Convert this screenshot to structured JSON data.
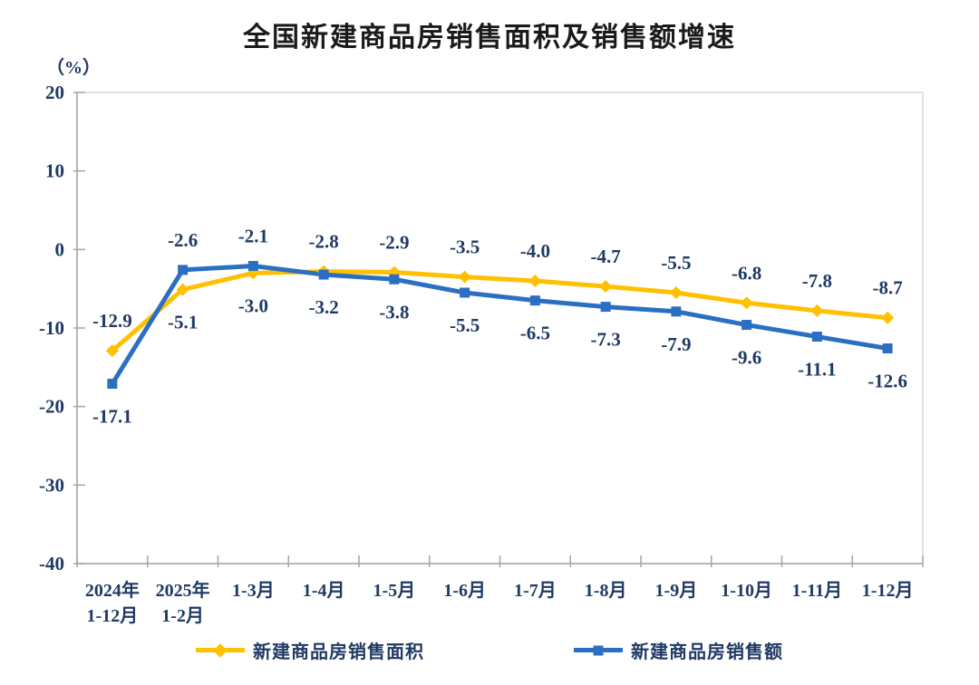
{
  "title": "全国新建商品房销售面积及销售额增速",
  "y_axis_unit": "（%）",
  "colors": {
    "series_area": "#FFC000",
    "series_amount": "#2B6FC2",
    "axis_line": "#A6A6A6",
    "plot_border": "#D9D9D9",
    "label_text": "#1F3A63",
    "title_text": "#1A1A1A"
  },
  "chart_data": {
    "type": "line",
    "title": "全国新建商品房销售面积及销售额增速",
    "ylabel": "（%）",
    "xlabel": "",
    "ylim": [
      -40,
      20
    ],
    "yticks": [
      20,
      10,
      0,
      -10,
      -20,
      -30,
      -40
    ],
    "grid": false,
    "legend_position": "bottom",
    "data_labels": true,
    "categories": [
      [
        "2024年",
        "1-12月"
      ],
      [
        "2025年",
        "1-2月"
      ],
      [
        "1-3月"
      ],
      [
        "1-4月"
      ],
      [
        "1-5月"
      ],
      [
        "1-6月"
      ],
      [
        "1-7月"
      ],
      [
        "1-8月"
      ],
      [
        "1-9月"
      ],
      [
        "1-10月"
      ],
      [
        "1-11月"
      ],
      [
        "1-12月"
      ]
    ],
    "series": [
      {
        "key": "sales-area",
        "name": "新建商品房销售面积",
        "color": "#FFC000",
        "marker": "diamond",
        "values": [
          -12.9,
          -5.1,
          -3.0,
          -2.8,
          -2.9,
          -3.5,
          -4.0,
          -4.7,
          -5.5,
          -6.8,
          -7.8,
          -8.7
        ]
      },
      {
        "key": "sales-amount",
        "name": "新建商品房销售额",
        "color": "#2B6FC2",
        "marker": "square",
        "values": [
          -17.1,
          -2.6,
          -2.1,
          -3.2,
          -3.8,
          -5.5,
          -6.5,
          -7.3,
          -7.9,
          -9.6,
          -11.1,
          -12.6
        ]
      }
    ]
  }
}
